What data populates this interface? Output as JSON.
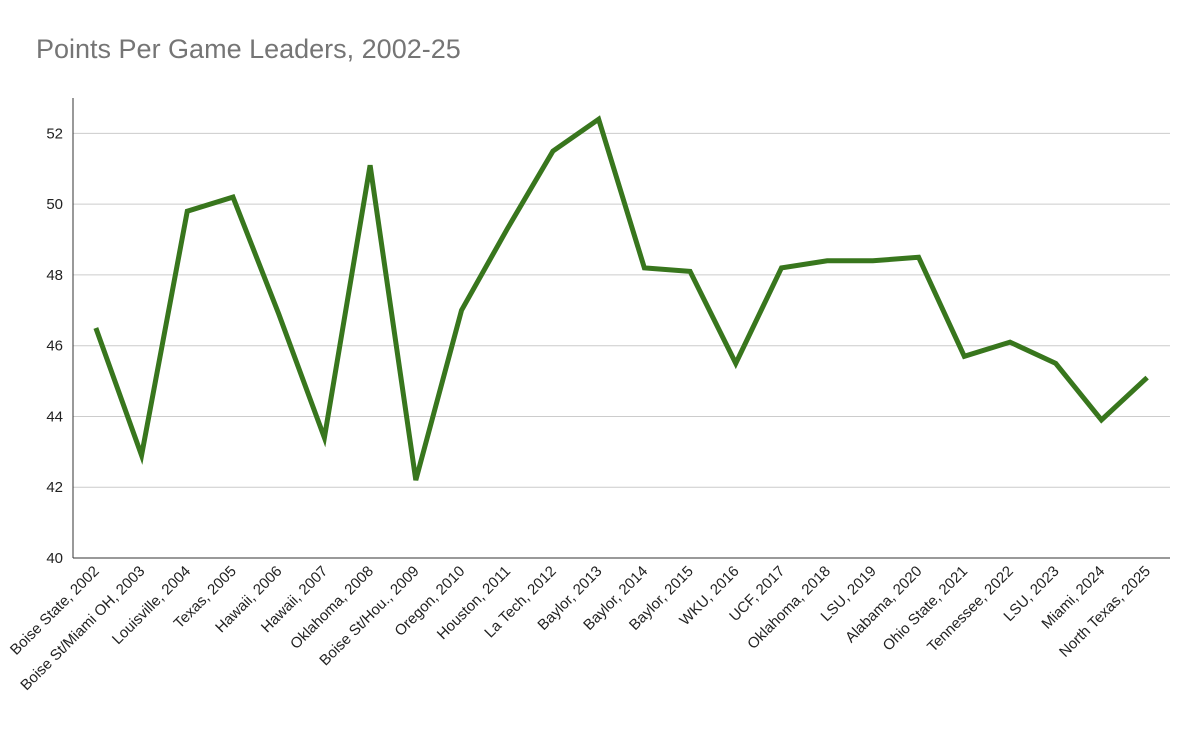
{
  "chart_data": {
    "type": "line",
    "title": "Points Per Game Leaders, 2002-25",
    "categories": [
      "Boise State, 2002",
      "Boise St/Miami OH, 2003",
      "Louisville, 2004",
      "Texas, 2005",
      "Hawaii, 2006",
      "Hawaii, 2007",
      "Oklahoma, 2008",
      "Boise St/Hou., 2009",
      "Oregon, 2010",
      "Houston, 2011",
      "La Tech, 2012",
      "Baylor, 2013",
      "Baylor, 2014",
      "Baylor, 2015",
      "WKU, 2016",
      "UCF, 2017",
      "Oklahoma, 2018",
      "LSU, 2019",
      "Alabama, 2020",
      "Ohio State, 2021",
      "Tennessee, 2022",
      "LSU, 2023",
      "Miami, 2024",
      "North Texas, 2025"
    ],
    "values": [
      46.5,
      42.9,
      49.8,
      50.2,
      46.9,
      43.4,
      51.1,
      42.2,
      47.0,
      49.3,
      51.5,
      52.4,
      48.2,
      48.1,
      45.5,
      48.2,
      48.4,
      48.4,
      48.5,
      45.7,
      46.1,
      45.5,
      43.9,
      45.1
    ],
    "color": "#38761d",
    "ylim": [
      40,
      53
    ],
    "yticks": [
      40,
      42,
      44,
      46,
      48,
      50,
      52
    ],
    "grid": true
  }
}
